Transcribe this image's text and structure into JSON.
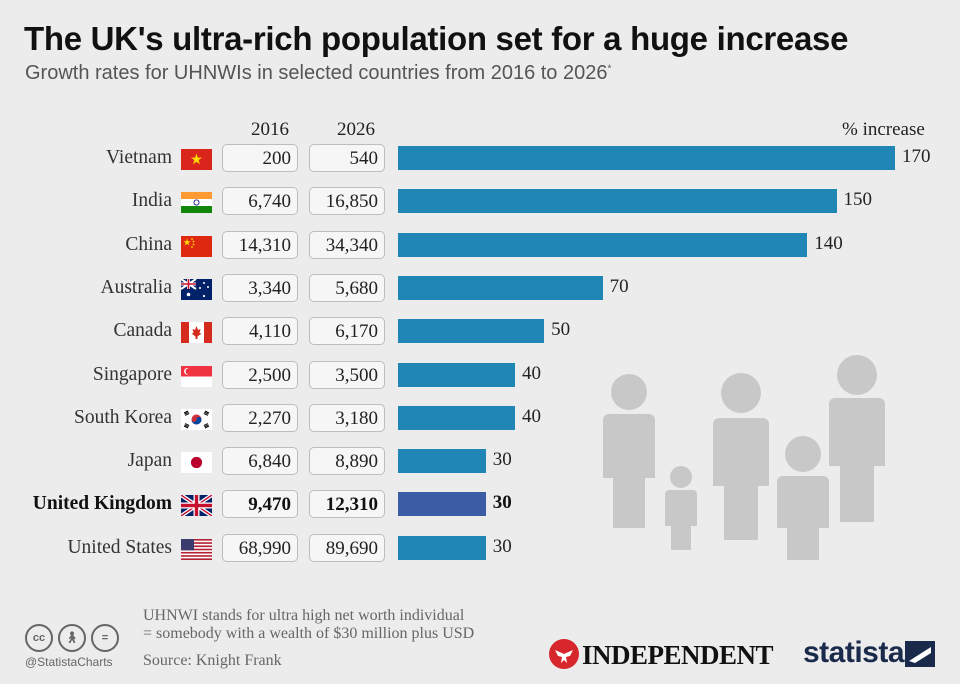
{
  "title": "The UK's ultra-rich population set for a huge increase",
  "subtitle": "Growth rates for UHNWIs in selected countries from 2016 to 2026",
  "subtitle_marker": "*",
  "columns": {
    "y2016": "2016",
    "y2026": "2026",
    "increase": "% increase"
  },
  "chart_data": {
    "type": "bar",
    "title": "The UK's ultra-rich population set for a huge increase",
    "subtitle": "Growth rates for UHNWIs in selected countries from 2016 to 2026",
    "categories": [
      "Vietnam",
      "India",
      "China",
      "Australia",
      "Canada",
      "Singapore",
      "South Korea",
      "Japan",
      "United Kingdom",
      "United States"
    ],
    "series": [
      {
        "name": "% increase",
        "values": [
          170,
          150,
          140,
          70,
          50,
          40,
          40,
          30,
          30,
          30
        ]
      }
    ],
    "table": {
      "2016": [
        "200",
        "6,740",
        "14,310",
        "3,340",
        "4,110",
        "2,500",
        "2,270",
        "6,840",
        "9,470",
        "68,990"
      ],
      "2026": [
        "540",
        "16,850",
        "34,340",
        "5,680",
        "6,170",
        "3,500",
        "3,180",
        "8,890",
        "12,310",
        "89,690"
      ]
    },
    "highlight": "United Kingdom",
    "colors": {
      "bar": "#1f86b5",
      "highlight": "#3a5da6"
    },
    "xlim": [
      0,
      170
    ],
    "grid": false,
    "orientation": "horizontal"
  },
  "footnote_line1": "UHNWI stands for ultra high net worth individual",
  "footnote_line2": "= somebody with a wealth of $30 million plus USD",
  "source": "Source: Knight Frank",
  "handle": "@StatistaCharts",
  "independent_logo": "INDEPENDENT",
  "statista_logo": "statista",
  "icons": [
    "cc-icon",
    "attribution-icon",
    "no-derivatives-icon",
    "eagle-icon",
    "statista-mark-icon",
    "people-illustration"
  ]
}
